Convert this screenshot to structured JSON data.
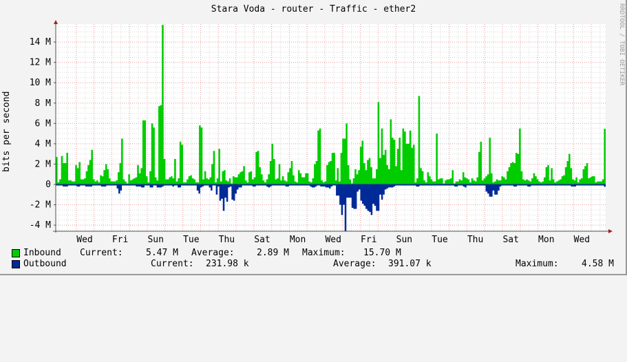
{
  "title": "Stara Voda - router - Traffic - ether2",
  "watermark": "RRDTOOL / TOBI OETIKER",
  "colors": {
    "inbound": "#00cc00",
    "outbound": "#002a97",
    "grid_major": "#e8a0a0",
    "grid_minor": "#d8d8d8",
    "axis": "#505050",
    "arrow": "#a02020",
    "background": "#f3f3f3",
    "plot_bg": "#ffffff"
  },
  "legend": {
    "inbound": {
      "label": "Inbound",
      "current_label": "Current:",
      "current": "5.47 M",
      "average_label": "Average:",
      "average": "2.89 M",
      "maximum_label": "Maximum:",
      "maximum": "15.70 M"
    },
    "outbound": {
      "label": "Outbound",
      "current_label": "Current:",
      "current": "231.98 k",
      "average_label": "Average:",
      "average": "391.07 k",
      "maximum_label": "Maximum:",
      "maximum": "4.58 M"
    }
  },
  "chart_data": {
    "type": "area",
    "title": "Stara Voda - router - Traffic - ether2",
    "xlabel": "",
    "ylabel": "bits per second",
    "ylim": [
      -4.6,
      15.8
    ],
    "yticks": [
      -4,
      -2,
      0,
      2,
      4,
      6,
      8,
      10,
      12,
      14
    ],
    "ytick_labels": [
      "-4 M",
      "-2 M",
      "0",
      "2 M",
      "4 M",
      "6 M",
      "8 M",
      "10 M",
      "12 M",
      "14 M"
    ],
    "xtick_labels": [
      "Wed",
      "Fri",
      "Sun",
      "Tue",
      "Thu",
      "Sat",
      "Mon",
      "Wed",
      "Fri",
      "Sun",
      "Tue",
      "Thu",
      "Sat",
      "Mon",
      "Wed"
    ],
    "grid": true,
    "legend_position": "bottom",
    "unit": "M bits/s",
    "series": [
      {
        "name": "Inbound",
        "color": "#00cc00",
        "values": [
          2.7,
          0.2,
          0.5,
          2.8,
          2.1,
          2.1,
          3.1,
          0.4,
          0.4,
          0.3,
          0.3,
          1.9,
          1.6,
          2.2,
          0.5,
          0.5,
          0.6,
          1.3,
          1.9,
          2.4,
          3.4,
          0.5,
          0.3,
          0.4,
          0.2,
          0.9,
          0.8,
          1.4,
          2.0,
          1.5,
          0.6,
          0.3,
          0.3,
          0.3,
          0.4,
          1.2,
          2.1,
          4.5,
          0.5,
          0.3,
          0.1,
          1.0,
          0.4,
          0.5,
          0.6,
          0.7,
          1.9,
          1.1,
          1.6,
          6.3,
          6.3,
          0.8,
          0.2,
          1.3,
          6.0,
          5.6,
          0.7,
          0.4,
          7.7,
          7.8,
          15.7,
          2.5,
          0.5,
          0.5,
          0.7,
          0.8,
          0.6,
          2.5,
          0.3,
          0.6,
          4.2,
          3.9,
          0.2,
          0.2,
          0.5,
          0.8,
          0.9,
          0.6,
          0.5,
          0.2,
          0.2,
          5.8,
          5.6,
          0.5,
          1.3,
          0.6,
          0.5,
          0.7,
          2.0,
          3.3,
          0.2,
          0.6,
          3.5,
          0.3,
          1.3,
          1.4,
          0.4,
          0.3,
          0.6,
          0.1,
          0.8,
          0.7,
          0.7,
          1.0,
          1.2,
          1.3,
          1.8,
          0.4,
          0.2,
          1.2,
          1.3,
          0.5,
          0.7,
          3.2,
          3.3,
          1.7,
          1.0,
          0.4,
          0.2,
          0.5,
          1.0,
          2.3,
          4.0,
          2.5,
          0.5,
          0.6,
          2.0,
          0.4,
          0.8,
          0.4,
          0.3,
          1.2,
          1.6,
          2.3,
          0.9,
          0.3,
          0.2,
          1.4,
          1.1,
          0.7,
          0.7,
          1.1,
          1.1,
          0.3,
          0.2,
          0.6,
          2.0,
          2.3,
          5.3,
          5.5,
          0.4,
          0.2,
          0.3,
          1.9,
          2.2,
          2.3,
          3.1,
          3.1,
          0.4,
          1.6,
          0.3,
          3.1,
          4.5,
          4.5,
          6.0,
          1.9,
          0.5,
          0.1,
          0.6,
          1.5,
          1.0,
          1.4,
          3.7,
          4.3,
          2.1,
          1.4,
          2.4,
          2.6,
          1.7,
          0.6,
          0.6,
          1.5,
          8.1,
          2.6,
          5.5,
          2.9,
          3.4,
          1.9,
          1.5,
          6.4,
          4.6,
          4.4,
          1.8,
          3.5,
          4.6,
          1.4,
          5.5,
          5.2,
          4.0,
          4.0,
          5.3,
          3.6,
          3.9,
          0.2,
          0.6,
          8.7,
          1.6,
          1.3,
          0.4,
          0.2,
          1.2,
          0.8,
          0.5,
          0.3,
          0.3,
          5.0,
          0.5,
          0.6,
          0.6,
          0.1,
          0.4,
          0.5,
          0.5,
          0.6,
          1.4,
          0.1,
          0.3,
          0.3,
          0.5,
          0.4,
          1.2,
          0.7,
          0.6,
          0.5,
          0.2,
          0.6,
          0.4,
          0.3,
          0.7,
          3.2,
          4.2,
          0.4,
          0.6,
          0.8,
          1.0,
          4.6,
          1.1,
          0.2,
          0.3,
          0.5,
          0.4,
          0.4,
          0.8,
          0.7,
          0.5,
          1.3,
          1.7,
          2.1,
          2.2,
          2.1,
          3.1,
          3.0,
          5.5,
          1.3,
          0.5,
          0.4,
          0.5,
          0.4,
          0.3,
          0.6,
          1.1,
          0.8,
          0.5,
          0.3,
          0.2,
          0.3,
          0.7,
          1.7,
          1.9,
          0.4,
          1.6,
          0.5,
          0.2,
          0.3,
          0.4,
          0.5,
          0.8,
          0.9,
          1.7,
          2.3,
          3.0,
          1.6,
          0.5,
          0.4,
          0.7,
          0.2,
          0.5,
          0.6,
          1.5,
          1.8,
          2.1,
          0.6,
          0.7,
          0.8,
          0.8,
          0.2,
          0.3,
          0.3,
          0.3,
          0.5,
          5.47
        ],
        "peak_max": 15.7
      },
      {
        "name": "Outbound",
        "color": "#002a97",
        "plotted": "negative",
        "values": [
          0.1,
          0.1,
          0.1,
          0.1,
          0.2,
          0.2,
          0.2,
          0.1,
          0.1,
          0.1,
          0.1,
          0.1,
          0.2,
          0.2,
          0.1,
          0.1,
          0.1,
          0.2,
          0.2,
          0.2,
          0.2,
          0.1,
          0.1,
          0.1,
          0.1,
          0.1,
          0.2,
          0.2,
          0.2,
          0.1,
          0.1,
          0.1,
          0.1,
          0.1,
          0.1,
          0.4,
          0.9,
          0.6,
          0.1,
          0.1,
          0.1,
          0.1,
          0.1,
          0.1,
          0.1,
          0.1,
          0.2,
          0.2,
          0.2,
          0.3,
          0.3,
          0.1,
          0.1,
          0.1,
          0.3,
          0.3,
          0.1,
          0.1,
          0.3,
          0.3,
          0.3,
          0.2,
          0.1,
          0.1,
          0.1,
          0.1,
          0.1,
          0.2,
          0.1,
          0.1,
          0.3,
          0.3,
          0.1,
          0.1,
          0.1,
          0.1,
          0.1,
          0.1,
          0.1,
          0.1,
          0.1,
          0.6,
          0.9,
          0.3,
          0.2,
          0.1,
          0.1,
          0.1,
          0.3,
          0.6,
          0.1,
          0.1,
          1.0,
          0.2,
          1.6,
          1.4,
          2.6,
          1.3,
          1.7,
          0.3,
          0.2,
          1.5,
          1.6,
          0.9,
          0.5,
          0.3,
          0.3,
          0.1,
          0.1,
          0.1,
          0.1,
          0.1,
          0.1,
          0.2,
          0.2,
          0.1,
          0.1,
          0.1,
          0.1,
          0.1,
          0.1,
          0.2,
          0.3,
          0.2,
          0.1,
          0.1,
          0.1,
          0.1,
          0.1,
          0.1,
          0.1,
          0.1,
          0.2,
          0.2,
          0.1,
          0.1,
          0.1,
          0.1,
          0.1,
          0.1,
          0.1,
          0.1,
          0.1,
          0.1,
          0.1,
          0.1,
          0.2,
          0.3,
          0.3,
          0.2,
          0.1,
          0.1,
          0.2,
          0.2,
          0.2,
          0.3,
          0.3,
          0.4,
          0.2,
          0.1,
          0.1,
          1.1,
          1.1,
          2.0,
          3.0,
          2.0,
          4.58,
          1.3,
          1.3,
          1.3,
          2.3,
          2.4,
          2.4,
          0.7,
          0.5,
          1.6,
          1.9,
          2.1,
          2.4,
          2.6,
          2.7,
          3.0,
          1.9,
          2.1,
          2.6,
          2.6,
          1.0,
          1.5,
          1.0,
          0.5,
          0.4,
          0.3,
          0.3,
          0.3,
          0.2,
          0.1,
          0.1,
          0.1,
          0.1,
          0.1,
          0.1,
          0.1,
          0.1,
          0.1,
          0.1,
          0.1,
          0.1,
          0.2,
          0.2,
          0.1,
          0.1,
          0.1,
          0.1,
          0.1,
          0.1,
          0.1,
          0.1,
          0.1,
          0.1,
          0.1,
          0.1,
          0.1,
          0.1,
          0.1,
          0.1,
          0.1,
          0.1,
          0.1,
          0.1,
          0.2,
          0.2,
          0.1,
          0.1,
          0.1,
          0.2,
          0.3,
          0.1,
          0.1,
          0.1,
          0.1,
          0.1,
          0.1,
          0.1,
          0.1,
          0.1,
          0.1,
          0.1,
          0.7,
          0.9,
          1.2,
          1.2,
          0.6,
          1.0,
          1.0,
          0.6,
          0.2,
          0.1,
          0.1,
          0.1,
          0.1,
          0.1,
          0.1,
          0.1,
          0.2,
          0.2,
          0.1,
          0.1,
          0.1,
          0.1,
          0.1,
          0.1,
          0.2,
          0.2,
          0.1,
          0.1,
          0.1,
          0.1,
          0.1,
          0.1,
          0.1,
          0.1,
          0.1,
          0.1,
          0.1,
          0.1,
          0.1,
          0.1,
          0.1,
          0.1,
          0.1,
          0.1,
          0.1,
          0.1,
          0.1,
          0.1,
          0.1,
          0.2,
          0.2,
          0.2,
          0.1,
          0.1,
          0.1,
          0.1,
          0.1,
          0.1,
          0.1,
          0.1,
          0.1,
          0.1,
          0.1,
          0.1,
          0.1,
          0.1,
          0.1,
          0.1,
          0.23
        ],
        "peak_max": 4.58
      }
    ]
  }
}
